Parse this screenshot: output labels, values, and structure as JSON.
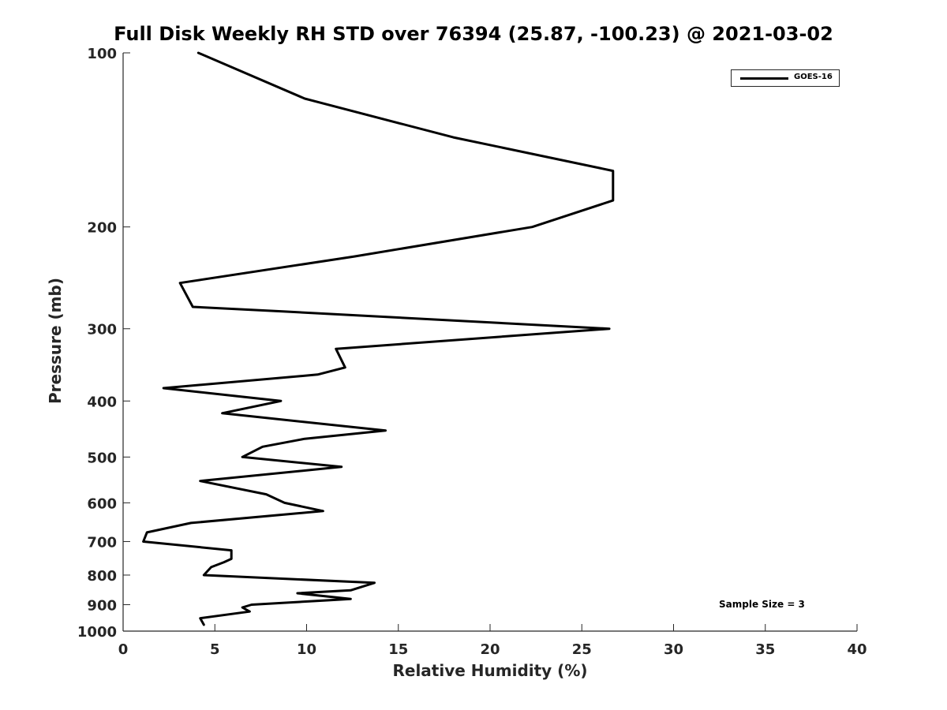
{
  "chart_data": {
    "type": "line",
    "title": "Full Disk Weekly RH STD over 76394 (25.87, -100.23) @ 2021-03-02",
    "xlabel": "Relative Humidity (%)",
    "ylabel": "Pressure (mb)",
    "xlim": [
      0,
      40
    ],
    "ylim": [
      100,
      1000
    ],
    "y_scale": "log",
    "y_reversed": true,
    "x_ticks": [
      0,
      5,
      10,
      15,
      20,
      25,
      30,
      35,
      40
    ],
    "y_ticks": [
      100,
      200,
      300,
      400,
      500,
      600,
      700,
      800,
      900,
      1000
    ],
    "grid": false,
    "legend_position": "top-right",
    "series": [
      {
        "name": "GOES-16",
        "color": "#000000",
        "x": [
          4.1,
          9.9,
          18.0,
          26.7,
          26.7,
          22.3,
          12.6,
          3.1,
          3.8,
          8.7,
          26.5,
          11.6,
          12.1,
          10.6,
          2.2,
          8.6,
          5.4,
          14.3,
          9.9,
          7.6,
          6.5,
          11.9,
          4.2,
          7.8,
          8.8,
          10.9,
          3.7,
          1.3,
          1.1,
          5.9,
          5.9,
          5.5,
          4.8,
          4.4,
          13.7,
          12.4,
          9.5,
          12.4,
          7.0,
          6.5,
          6.9,
          4.2,
          4.4
        ],
        "y": [
          100,
          120,
          140,
          160,
          180,
          200,
          225,
          250,
          275,
          280,
          300,
          325,
          350,
          360,
          380,
          400,
          420,
          450,
          465,
          480,
          500,
          520,
          550,
          580,
          600,
          620,
          650,
          675,
          700,
          725,
          750,
          760,
          775,
          800,
          825,
          850,
          860,
          880,
          900,
          910,
          925,
          950,
          975
        ]
      }
    ],
    "annotations": [
      "Sample Size = 3"
    ]
  }
}
